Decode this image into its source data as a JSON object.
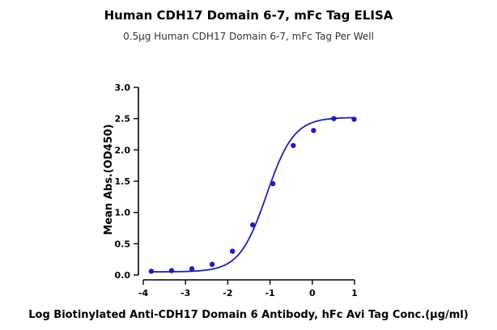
{
  "chart_data": {
    "type": "scatter",
    "title": "Human CDH17 Domain 6-7, mFc Tag ELISA",
    "subtitle": "0.5µg Human CDH17 Domain 6-7, mFc Tag Per Well",
    "xlabel": "Log Biotinylated Anti-CDH17 Domain 6 Antibody, hFc Avi Tag Conc.(µg/ml)",
    "ylabel": "Mean Abs.(OD450)",
    "xlim": [
      -4,
      1
    ],
    "ylim": [
      0,
      3.0
    ],
    "x_ticks": [
      "-4",
      "-3",
      "-2",
      "-1",
      "0",
      "1"
    ],
    "y_ticks": [
      "0.0",
      "0.5",
      "1.0",
      "1.5",
      "2.0",
      "2.5",
      "3.0"
    ],
    "grid": false,
    "color": "#1f1fb4",
    "series": [
      {
        "x": [
          -3.81,
          -3.33,
          -2.85,
          -2.37,
          -1.89,
          -1.41,
          -0.93,
          -0.45,
          0.03,
          0.51,
          0.99
        ],
        "values": [
          0.06,
          0.07,
          0.1,
          0.17,
          0.38,
          0.8,
          1.46,
          2.07,
          2.31,
          2.5,
          2.49
        ]
      }
    ],
    "fit_curve": {
      "bottom": 0.05,
      "top": 2.52,
      "logEC50": -1.08,
      "hill": 1.35
    }
  }
}
